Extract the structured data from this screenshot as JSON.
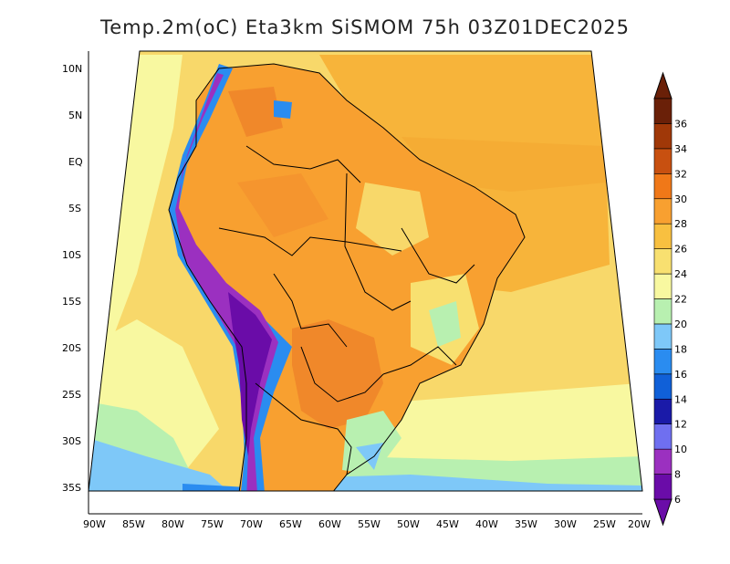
{
  "title": "Temp.2m(oC) Eta3km SiSMOM 75h 03Z01DEC2025",
  "latitude_labels": [
    "10N",
    "5N",
    "EQ",
    "5S",
    "10S",
    "15S",
    "20S",
    "25S",
    "30S",
    "35S"
  ],
  "longitude_labels": [
    "90W",
    "85W",
    "80W",
    "75W",
    "70W",
    "65W",
    "60W",
    "55W",
    "50W",
    "45W",
    "40W",
    "35W",
    "30W",
    "25W",
    "20W"
  ],
  "legend": {
    "labels": [
      "6",
      "8",
      "10",
      "12",
      "14",
      "16",
      "18",
      "20",
      "22",
      "24",
      "26",
      "28",
      "30",
      "32",
      "34",
      "36"
    ],
    "colors": [
      "#6a0ca8",
      "#9b30c0",
      "#6f6ff0",
      "#1a1aa8",
      "#1060d8",
      "#2a8cf0",
      "#7ec8f8",
      "#b8f0b0",
      "#f8f8a0",
      "#f8e070",
      "#f8c040",
      "#f8a030",
      "#f07818",
      "#c85010",
      "#a03808",
      "#6a2008"
    ]
  },
  "map_colors": {
    "ocean_warm": "#f7b43a",
    "ocean_mid": "#f8d86a",
    "ocean_cool": "#f8f8a0",
    "ocean_green": "#b8f0b0",
    "ocean_cold": "#7ec8f8",
    "land_hot": "#f0882a",
    "land_warm": "#f8a030",
    "andes_high": "#6a0ca8",
    "andes_mid": "#2a8cf0",
    "border": "#000000"
  }
}
